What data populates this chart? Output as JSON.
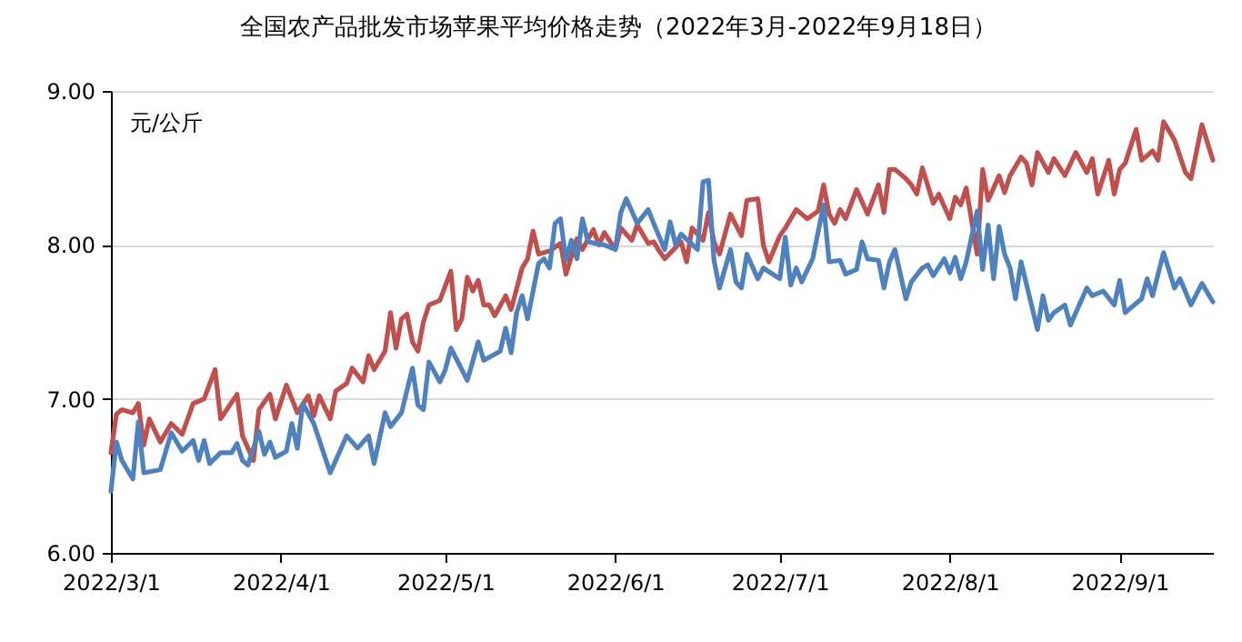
{
  "chart_data": {
    "type": "line",
    "title": "全国农产品批发市场苹果平均价格走势（2022年3月-2022年9月18日）",
    "ylabel": "元/公斤",
    "grid": "y",
    "xlim": [
      "2022-03-01",
      "2022-09-18"
    ],
    "xticks": [
      {
        "value": "2022-03-01",
        "label": "2022/3/1"
      },
      {
        "value": "2022-04-01",
        "label": "2022/4/1"
      },
      {
        "value": "2022-05-01",
        "label": "2022/5/1"
      },
      {
        "value": "2022-06-01",
        "label": "2022/6/1"
      },
      {
        "value": "2022-07-01",
        "label": "2022/7/1"
      },
      {
        "value": "2022-08-01",
        "label": "2022/8/1"
      },
      {
        "value": "2022-09-01",
        "label": "2022/9/1"
      }
    ],
    "ylim": [
      6,
      9
    ],
    "yticks": [
      {
        "value": 6,
        "label": "6.00"
      },
      {
        "value": 7,
        "label": "7.00"
      },
      {
        "value": 8,
        "label": "8.00"
      },
      {
        "value": 9,
        "label": "9.00"
      }
    ],
    "series": [
      {
        "color": "#c0504d",
        "x": [
          "2022-03-01",
          "2022-03-02",
          "2022-03-03",
          "2022-03-05",
          "2022-03-06",
          "2022-03-07",
          "2022-03-08",
          "2022-03-10",
          "2022-03-12",
          "2022-03-14",
          "2022-03-16",
          "2022-03-18",
          "2022-03-20",
          "2022-03-21",
          "2022-03-24",
          "2022-03-25",
          "2022-03-27",
          "2022-03-28",
          "2022-03-30",
          "2022-03-31",
          "2022-04-02",
          "2022-04-04",
          "2022-04-06",
          "2022-04-07",
          "2022-04-08",
          "2022-04-10",
          "2022-04-11",
          "2022-04-13",
          "2022-04-14",
          "2022-04-16",
          "2022-04-17",
          "2022-04-18",
          "2022-04-20",
          "2022-04-21",
          "2022-04-22",
          "2022-04-23",
          "2022-04-24",
          "2022-04-25",
          "2022-04-26",
          "2022-04-27",
          "2022-04-28",
          "2022-04-30",
          "2022-05-02",
          "2022-05-03",
          "2022-05-04",
          "2022-05-05",
          "2022-05-06",
          "2022-05-07",
          "2022-05-08",
          "2022-05-09",
          "2022-05-10",
          "2022-05-12",
          "2022-05-13",
          "2022-05-15",
          "2022-05-16",
          "2022-05-17",
          "2022-05-18",
          "2022-05-20",
          "2022-05-22",
          "2022-05-23",
          "2022-05-25",
          "2022-05-26",
          "2022-05-28",
          "2022-05-29",
          "2022-05-30",
          "2022-06-01",
          "2022-06-02",
          "2022-06-04",
          "2022-06-05",
          "2022-06-07",
          "2022-06-08",
          "2022-06-09",
          "2022-06-10",
          "2022-06-13",
          "2022-06-14",
          "2022-06-15",
          "2022-06-17",
          "2022-06-18",
          "2022-06-19",
          "2022-06-20",
          "2022-06-22",
          "2022-06-24",
          "2022-06-25",
          "2022-06-27",
          "2022-06-28",
          "2022-06-29",
          "2022-07-01",
          "2022-07-02",
          "2022-07-04",
          "2022-07-06",
          "2022-07-08",
          "2022-07-09",
          "2022-07-10",
          "2022-07-11",
          "2022-07-12",
          "2022-07-13",
          "2022-07-15",
          "2022-07-17",
          "2022-07-19",
          "2022-07-20",
          "2022-07-21",
          "2022-07-22",
          "2022-07-24",
          "2022-07-25",
          "2022-07-26",
          "2022-07-27",
          "2022-07-29",
          "2022-07-30",
          "2022-08-01",
          "2022-08-02",
          "2022-08-03",
          "2022-08-04",
          "2022-08-06",
          "2022-08-07",
          "2022-08-08",
          "2022-08-10",
          "2022-08-11",
          "2022-08-12",
          "2022-08-14",
          "2022-08-15",
          "2022-08-16",
          "2022-08-17",
          "2022-08-19",
          "2022-08-20",
          "2022-08-22",
          "2022-08-24",
          "2022-08-26",
          "2022-08-27",
          "2022-08-28",
          "2022-08-30",
          "2022-08-31",
          "2022-09-01",
          "2022-09-02",
          "2022-09-04",
          "2022-09-05",
          "2022-09-07",
          "2022-09-08",
          "2022-09-09",
          "2022-09-11",
          "2022-09-13",
          "2022-09-14",
          "2022-09-16",
          "2022-09-18"
        ],
        "values": [
          6.65,
          6.9,
          6.93,
          6.91,
          6.97,
          6.7,
          6.87,
          6.72,
          6.84,
          6.77,
          6.97,
          7.0,
          7.19,
          6.87,
          7.03,
          6.76,
          6.6,
          6.93,
          7.03,
          6.87,
          7.09,
          6.91,
          7.02,
          6.89,
          7.02,
          6.87,
          7.05,
          7.1,
          7.2,
          7.11,
          7.28,
          7.19,
          7.31,
          7.56,
          7.33,
          7.52,
          7.55,
          7.37,
          7.31,
          7.5,
          7.61,
          7.64,
          7.83,
          7.45,
          7.52,
          7.79,
          7.7,
          7.77,
          7.61,
          7.61,
          7.54,
          7.67,
          7.58,
          7.85,
          7.91,
          8.09,
          7.94,
          7.96,
          8.01,
          7.81,
          8.04,
          7.97,
          8.1,
          8.0,
          8.08,
          7.97,
          8.11,
          8.03,
          8.13,
          8.01,
          8.02,
          7.96,
          7.91,
          8.02,
          7.89,
          8.11,
          8.03,
          8.21,
          8.02,
          7.94,
          8.2,
          8.06,
          8.29,
          8.3,
          8.0,
          7.89,
          8.06,
          8.11,
          8.23,
          8.17,
          8.22,
          8.39,
          8.2,
          8.14,
          8.23,
          8.17,
          8.36,
          8.2,
          8.39,
          8.21,
          8.49,
          8.49,
          8.43,
          8.39,
          8.33,
          8.5,
          8.27,
          8.33,
          8.17,
          8.31,
          8.26,
          8.37,
          7.94,
          8.49,
          8.29,
          8.45,
          8.34,
          8.45,
          8.57,
          8.53,
          8.39,
          8.6,
          8.47,
          8.56,
          8.45,
          8.6,
          8.47,
          8.56,
          8.33,
          8.55,
          8.33,
          8.49,
          8.53,
          8.75,
          8.55,
          8.61,
          8.55,
          8.8,
          8.68,
          8.47,
          8.43,
          8.78,
          8.55
        ]
      },
      {
        "color": "#4f81bd",
        "x": [
          "2022-03-01",
          "2022-03-02",
          "2022-03-03",
          "2022-03-05",
          "2022-03-06",
          "2022-03-07",
          "2022-03-10",
          "2022-03-12",
          "2022-03-14",
          "2022-03-16",
          "2022-03-17",
          "2022-03-18",
          "2022-03-19",
          "2022-03-21",
          "2022-03-23",
          "2022-03-24",
          "2022-03-25",
          "2022-03-26",
          "2022-03-28",
          "2022-03-29",
          "2022-03-30",
          "2022-03-31",
          "2022-04-02",
          "2022-04-03",
          "2022-04-04",
          "2022-04-05",
          "2022-04-07",
          "2022-04-10",
          "2022-04-13",
          "2022-04-15",
          "2022-04-17",
          "2022-04-18",
          "2022-04-20",
          "2022-04-21",
          "2022-04-23",
          "2022-04-25",
          "2022-04-26",
          "2022-04-27",
          "2022-04-28",
          "2022-04-30",
          "2022-05-01",
          "2022-05-02",
          "2022-05-05",
          "2022-05-07",
          "2022-05-08",
          "2022-05-11",
          "2022-05-12",
          "2022-05-13",
          "2022-05-14",
          "2022-05-15",
          "2022-05-16",
          "2022-05-18",
          "2022-05-19",
          "2022-05-20",
          "2022-05-21",
          "2022-05-22",
          "2022-05-23",
          "2022-05-24",
          "2022-05-25",
          "2022-05-26",
          "2022-05-27",
          "2022-05-30",
          "2022-06-01",
          "2022-06-02",
          "2022-06-03",
          "2022-06-05",
          "2022-06-07",
          "2022-06-08",
          "2022-06-10",
          "2022-06-11",
          "2022-06-12",
          "2022-06-13",
          "2022-06-16",
          "2022-06-17",
          "2022-06-18",
          "2022-06-19",
          "2022-06-20",
          "2022-06-22",
          "2022-06-23",
          "2022-06-24",
          "2022-06-25",
          "2022-06-27",
          "2022-06-28",
          "2022-07-01",
          "2022-07-02",
          "2022-07-03",
          "2022-07-04",
          "2022-07-05",
          "2022-07-07",
          "2022-07-09",
          "2022-07-10",
          "2022-07-12",
          "2022-07-13",
          "2022-07-15",
          "2022-07-16",
          "2022-07-17",
          "2022-07-19",
          "2022-07-20",
          "2022-07-21",
          "2022-07-22",
          "2022-07-24",
          "2022-07-25",
          "2022-07-27",
          "2022-07-28",
          "2022-07-29",
          "2022-07-31",
          "2022-08-01",
          "2022-08-02",
          "2022-08-03",
          "2022-08-04",
          "2022-08-06",
          "2022-08-07",
          "2022-08-08",
          "2022-08-09",
          "2022-08-10",
          "2022-08-11",
          "2022-08-12",
          "2022-08-13",
          "2022-08-14",
          "2022-08-17",
          "2022-08-18",
          "2022-08-19",
          "2022-08-20",
          "2022-08-22",
          "2022-08-23",
          "2022-08-26",
          "2022-08-27",
          "2022-08-29",
          "2022-08-31",
          "2022-09-01",
          "2022-09-02",
          "2022-09-05",
          "2022-09-06",
          "2022-09-07",
          "2022-09-09",
          "2022-09-11",
          "2022-09-12",
          "2022-09-14",
          "2022-09-16",
          "2022-09-18"
        ],
        "values": [
          6.4,
          6.72,
          6.6,
          6.48,
          6.85,
          6.52,
          6.54,
          6.78,
          6.66,
          6.73,
          6.6,
          6.73,
          6.58,
          6.65,
          6.65,
          6.71,
          6.6,
          6.57,
          6.79,
          6.64,
          6.72,
          6.62,
          6.66,
          6.84,
          6.68,
          6.97,
          6.84,
          6.52,
          6.76,
          6.68,
          6.76,
          6.58,
          6.91,
          6.82,
          6.91,
          7.2,
          6.96,
          6.93,
          7.24,
          7.11,
          7.19,
          7.33,
          7.12,
          7.37,
          7.25,
          7.31,
          7.46,
          7.3,
          7.56,
          7.67,
          7.52,
          7.88,
          7.91,
          7.85,
          8.14,
          8.17,
          7.9,
          8.03,
          7.91,
          8.17,
          8.02,
          8.0,
          7.97,
          8.21,
          8.3,
          8.14,
          8.23,
          8.14,
          7.97,
          8.15,
          8.0,
          8.07,
          7.97,
          8.41,
          8.42,
          7.9,
          7.72,
          7.97,
          7.76,
          7.72,
          7.94,
          7.78,
          7.85,
          7.78,
          8.05,
          7.74,
          7.85,
          7.76,
          7.91,
          8.26,
          7.89,
          7.9,
          7.81,
          7.84,
          8.02,
          7.91,
          7.9,
          7.72,
          7.89,
          7.97,
          7.65,
          7.76,
          7.85,
          7.87,
          7.8,
          7.91,
          7.82,
          7.92,
          7.78,
          7.89,
          8.22,
          7.84,
          8.13,
          7.78,
          8.12,
          7.94,
          7.85,
          7.65,
          7.89,
          7.45,
          7.67,
          7.51,
          7.56,
          7.61,
          7.48,
          7.72,
          7.67,
          7.7,
          7.61,
          7.77,
          7.56,
          7.65,
          7.78,
          7.67,
          7.95,
          7.72,
          7.78,
          7.61,
          7.75,
          7.63
        ]
      }
    ]
  }
}
